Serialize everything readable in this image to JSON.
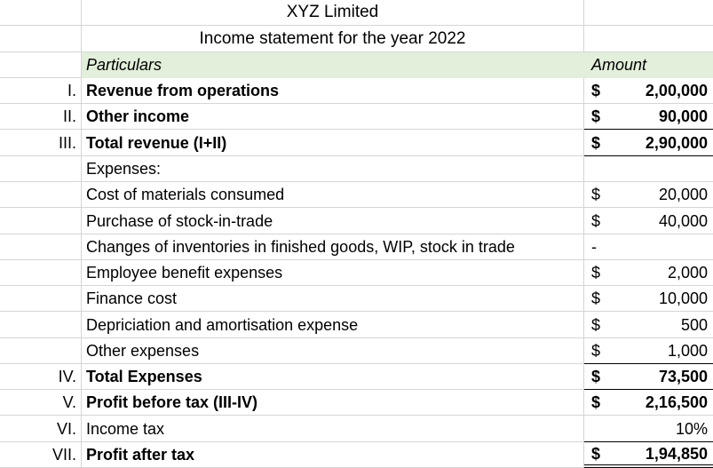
{
  "sheet": {
    "title": "XYZ Limited",
    "subtitle": "Income statement for the year 2022",
    "header": {
      "particulars": "Particulars",
      "amount": "Amount"
    },
    "rows": [
      {
        "no": "I.",
        "label": "Revenue from operations",
        "left": "$",
        "right": "2,00,000"
      },
      {
        "no": "II.",
        "label": "Other income",
        "left": "$",
        "right": "90,000"
      },
      {
        "no": "III.",
        "label": "Total revenue (I+II)",
        "left": "$",
        "right": "2,90,000"
      },
      {
        "no": "",
        "label": "Expenses:",
        "left": "",
        "right": ""
      },
      {
        "no": "",
        "label": "Cost of materials consumed",
        "left": "$",
        "right": "20,000"
      },
      {
        "no": "",
        "label": "Purchase of stock-in-trade",
        "left": "$",
        "right": "40,000"
      },
      {
        "no": "",
        "label": "Changes of inventories in finished goods, WIP, stock in trade",
        "left": "-",
        "right": ""
      },
      {
        "no": "",
        "label": "Employee benefit expenses",
        "left": "$",
        "right": "2,000"
      },
      {
        "no": "",
        "label": "Finance cost",
        "left": "$",
        "right": "10,000"
      },
      {
        "no": "",
        "label": "Depriciation and amortisation expense",
        "left": "$",
        "right": "500"
      },
      {
        "no": "",
        "label": "Other expenses",
        "left": "$",
        "right": "1,000"
      },
      {
        "no": "IV.",
        "label": "Total Expenses",
        "left": "$",
        "right": "73,500"
      },
      {
        "no": "V.",
        "label": "Profit before tax (III-IV)",
        "left": "$",
        "right": "2,16,500"
      },
      {
        "no": "VI.",
        "label": "Income tax",
        "left": "",
        "right": "10%"
      },
      {
        "no": "VII.",
        "label": "Profit after tax",
        "left": "$",
        "right": "1,94,850"
      }
    ]
  },
  "colors": {
    "header_bg": "#e2efda",
    "gridline": "#d5d5d5",
    "border": "#000000"
  }
}
